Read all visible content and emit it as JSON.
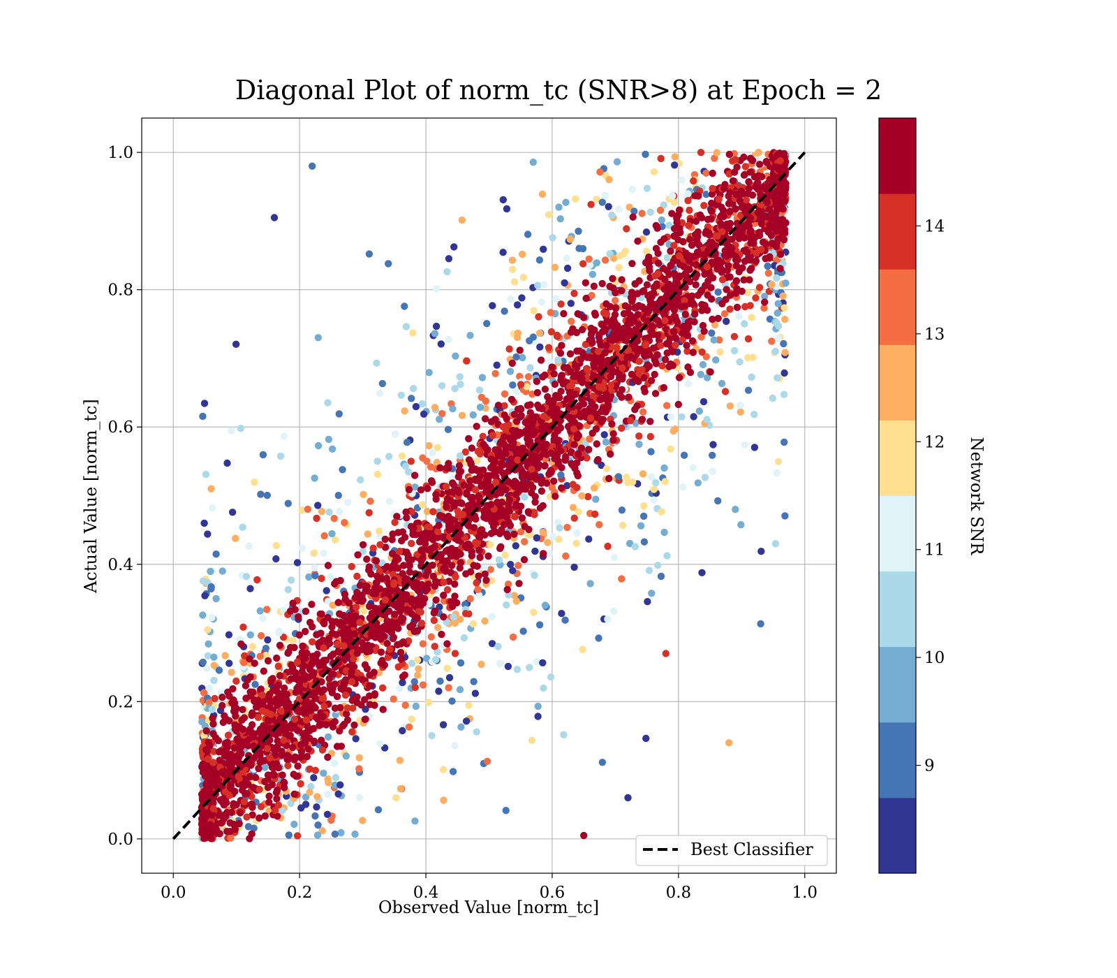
{
  "chart_data": {
    "type": "scatter",
    "title": "Diagonal Plot of norm_tc (SNR>8) at Epoch = 2",
    "xlabel": "Observed Value [norm_tc]",
    "ylabel": "Actual Value [norm_tc]",
    "xlim": [
      -0.05,
      1.05
    ],
    "ylim": [
      -0.05,
      1.05
    ],
    "x_ticks": [
      "0.0",
      "0.2",
      "0.4",
      "0.6",
      "0.8",
      "1.0"
    ],
    "y_ticks": [
      "0.0",
      "0.2",
      "0.4",
      "0.6",
      "0.8",
      "1.0"
    ],
    "grid": true,
    "reference_line": {
      "label": "Best Classifier",
      "x": [
        0,
        1
      ],
      "y": [
        0,
        1
      ],
      "style": "dashed",
      "color": "#000000"
    },
    "legend": {
      "placement": "lower-right",
      "entries": [
        "Best Classifier"
      ]
    },
    "colorbar": {
      "label": "Network SNR",
      "range": [
        8,
        15
      ],
      "ticks": [
        "9",
        "10",
        "11",
        "12",
        "13",
        "14"
      ],
      "colors": [
        "#313695",
        "#4575b4",
        "#74add1",
        "#abd9e9",
        "#e0f3f8",
        "#fee090",
        "#fdae61",
        "#f46d43",
        "#d73027",
        "#a50026"
      ]
    },
    "point_cloud": {
      "description_note": "",
      "band_center_slope": 1.0,
      "high_snr_band_halfwidth": 0.12,
      "low_snr_spread_halfwidth": 0.45,
      "x_min": 0.045,
      "x_max": 0.97,
      "y_min": 0.0,
      "y_max": 1.0
    },
    "sample_outliers": [
      {
        "x": 0.88,
        "y": 0.14,
        "snr": 12.6
      },
      {
        "x": 0.78,
        "y": 0.27,
        "snr": 14.0
      },
      {
        "x": 0.89,
        "y": 0.48,
        "snr": 9.8
      },
      {
        "x": 0.16,
        "y": 0.905,
        "snr": 8.2
      },
      {
        "x": 0.22,
        "y": 0.98,
        "snr": 8.8
      },
      {
        "x": 0.06,
        "y": 0.51,
        "snr": 12.4
      },
      {
        "x": 0.72,
        "y": 0.06,
        "snr": 8.2
      },
      {
        "x": 0.65,
        "y": 0.005,
        "snr": 14.8
      }
    ]
  }
}
